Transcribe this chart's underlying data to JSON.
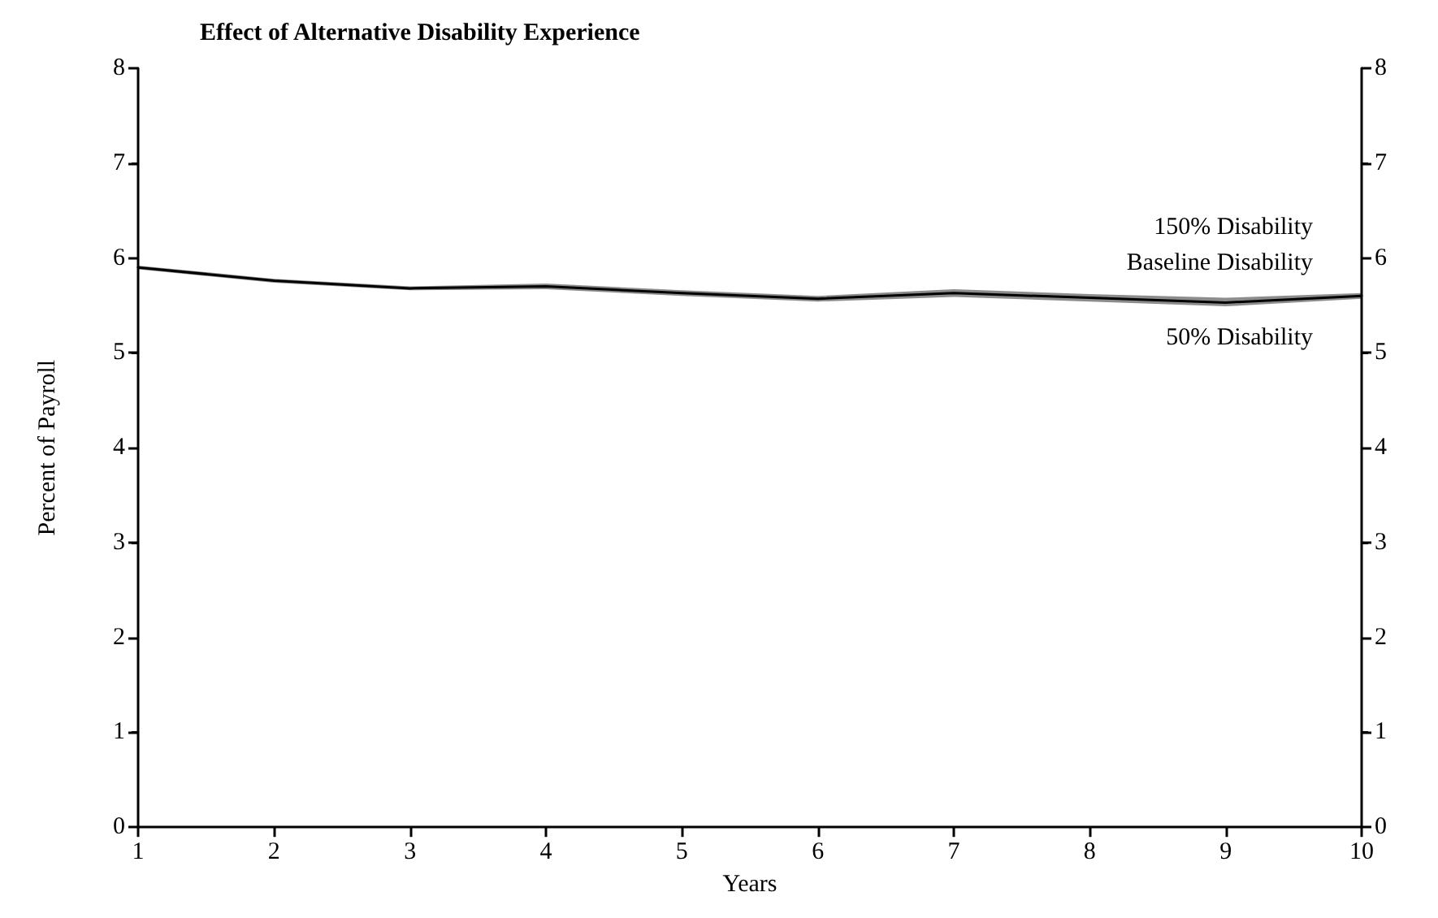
{
  "chart_data": {
    "type": "line",
    "title": "Effect of Alternative Disability Experience",
    "xlabel": "Years",
    "ylabel": "Percent of Payroll",
    "x": [
      1,
      2,
      3,
      4,
      5,
      6,
      7,
      8,
      9,
      10
    ],
    "series": [
      {
        "name": "Baseline Disability",
        "color": "#000000",
        "values": [
          5.9,
          5.76,
          5.68,
          5.7,
          5.63,
          5.57,
          5.63,
          5.58,
          5.53,
          5.6
        ],
        "lower": [
          5.88,
          5.74,
          5.66,
          5.67,
          5.6,
          5.54,
          5.59,
          5.54,
          5.49,
          5.57
        ],
        "upper": [
          5.92,
          5.78,
          5.7,
          5.73,
          5.66,
          5.6,
          5.67,
          5.62,
          5.58,
          5.63
        ]
      }
    ],
    "annotations": [
      "150% Disability",
      "50% Disability"
    ],
    "xlim": [
      1,
      10
    ],
    "xticks": [
      1,
      2,
      3,
      4,
      5,
      6,
      7,
      8,
      9,
      10
    ],
    "ylim": [
      0,
      8
    ],
    "yticks": [
      0,
      1,
      2,
      3,
      4,
      5,
      6,
      7,
      8
    ],
    "y2lim": [
      0,
      8
    ],
    "y2ticks": [
      0,
      1,
      2,
      3,
      4,
      5,
      6,
      7,
      8
    ],
    "grid": false,
    "legend": false,
    "marker": "none",
    "line_style": "solid"
  }
}
